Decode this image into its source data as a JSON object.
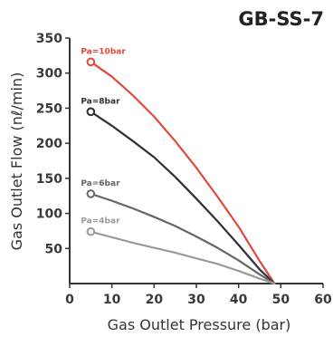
{
  "chart_data": {
    "type": "line",
    "title": "GB-SS-7",
    "xlabel": "Gas Outlet Pressure (bar)",
    "ylabel": "Gas Outlet Flow (nℓ/min)",
    "xlim": [
      0,
      60
    ],
    "ylim": [
      0,
      350
    ],
    "x_ticks": [
      0,
      10,
      20,
      30,
      40,
      50,
      60
    ],
    "y_ticks": [
      50,
      100,
      150,
      200,
      250,
      300,
      350
    ],
    "grid": false,
    "series": [
      {
        "name": "Pa=10bar",
        "color": "#e04a3c",
        "x": [
          5,
          10,
          15,
          20,
          25,
          30,
          35,
          40,
          45,
          48.5
        ],
        "y": [
          316,
          295,
          268,
          238,
          203,
          165,
          124,
          81,
          32,
          0
        ]
      },
      {
        "name": "Pa=8bar",
        "color": "#2e2f3a",
        "x": [
          5,
          10,
          15,
          20,
          25,
          30,
          35,
          40,
          45,
          48.5
        ],
        "y": [
          245,
          225,
          203,
          180,
          152,
          121,
          89,
          55,
          20,
          0
        ]
      },
      {
        "name": "Pa=6bar",
        "color": "#666666",
        "x": [
          5,
          10,
          15,
          20,
          25,
          30,
          35,
          40,
          45,
          48.5
        ],
        "y": [
          128,
          118,
          107,
          95,
          82,
          67,
          51,
          33,
          13,
          0
        ]
      },
      {
        "name": "Pa=4bar",
        "color": "#9a9a9a",
        "x": [
          5,
          10,
          15,
          20,
          25,
          30,
          35,
          40,
          45,
          48.5
        ],
        "y": [
          74,
          66,
          58,
          51,
          44,
          36,
          28,
          18,
          7,
          0
        ]
      }
    ]
  }
}
